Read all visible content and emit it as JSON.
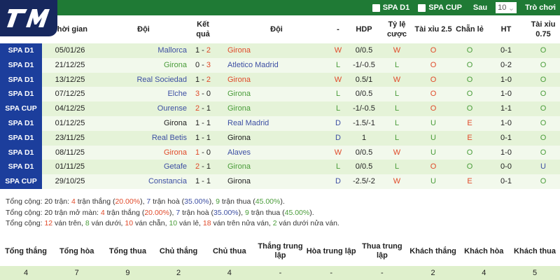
{
  "topbar": {
    "filters": [
      "SPA D1",
      "SPA CUP"
    ],
    "after_label": "Sau",
    "count": "10",
    "games_label": "Trò chơi"
  },
  "logo": "7M",
  "headers": [
    "Thời gian",
    "Đội",
    "Kết quả",
    "Đội",
    "-",
    "HDP",
    "Tỷ lệ cược",
    "Tài xỉu 2.5",
    "Chẵn lẻ",
    "HT",
    "Tài xỉu 0.75"
  ],
  "rows": [
    {
      "league": "SPA D1",
      "date": "05/01/26",
      "home": "Mallorca",
      "hs": "1",
      "as": "2",
      "away": "Girona",
      "res": "W",
      "hdp": "0/0.5",
      "odds": "W",
      "ou": "O",
      "oe": "O",
      "ht": "0-1",
      "ou075": "O"
    },
    {
      "league": "SPA D1",
      "date": "21/12/25",
      "home": "Girona",
      "hs": "0",
      "as": "3",
      "away": "Atletico Madrid",
      "res": "L",
      "hdp": "-1/-0.5",
      "odds": "L",
      "ou": "O",
      "oe": "O",
      "ht": "0-2",
      "ou075": "O"
    },
    {
      "league": "SPA D1",
      "date": "13/12/25",
      "home": "Real Sociedad",
      "hs": "1",
      "as": "2",
      "away": "Girona",
      "res": "W",
      "hdp": "0.5/1",
      "odds": "W",
      "ou": "O",
      "oe": "O",
      "ht": "1-0",
      "ou075": "O"
    },
    {
      "league": "SPA D1",
      "date": "07/12/25",
      "home": "Elche",
      "hs": "3",
      "as": "0",
      "away": "Girona",
      "res": "L",
      "hdp": "0/0.5",
      "odds": "L",
      "ou": "O",
      "oe": "O",
      "ht": "1-0",
      "ou075": "O"
    },
    {
      "league": "SPA CUP",
      "date": "04/12/25",
      "home": "Ourense",
      "hs": "2",
      "as": "1",
      "away": "Girona",
      "res": "L",
      "hdp": "-1/-0.5",
      "odds": "L",
      "ou": "O",
      "oe": "O",
      "ht": "1-1",
      "ou075": "O"
    },
    {
      "league": "SPA D1",
      "date": "01/12/25",
      "home": "Girona",
      "hs": "1",
      "as": "1",
      "away": "Real Madrid",
      "res": "D",
      "hdp": "-1.5/-1",
      "odds": "L",
      "ou": "U",
      "oe": "E",
      "ht": "1-0",
      "ou075": "O"
    },
    {
      "league": "SPA D1",
      "date": "23/11/25",
      "home": "Real Betis",
      "hs": "1",
      "as": "1",
      "away": "Girona",
      "res": "D",
      "hdp": "1",
      "odds": "L",
      "ou": "U",
      "oe": "E",
      "ht": "0-1",
      "ou075": "O"
    },
    {
      "league": "SPA D1",
      "date": "08/11/25",
      "home": "Girona",
      "hs": "1",
      "as": "0",
      "away": "Alaves",
      "res": "W",
      "hdp": "0/0.5",
      "odds": "W",
      "ou": "U",
      "oe": "O",
      "ht": "1-0",
      "ou075": "O"
    },
    {
      "league": "SPA D1",
      "date": "01/11/25",
      "home": "Getafe",
      "hs": "2",
      "as": "1",
      "away": "Girona",
      "res": "L",
      "hdp": "0/0.5",
      "odds": "L",
      "ou": "O",
      "oe": "O",
      "ht": "0-0",
      "ou075": "U"
    },
    {
      "league": "SPA CUP",
      "date": "29/10/25",
      "home": "Constancia",
      "hs": "1",
      "as": "1",
      "away": "Girona",
      "res": "D",
      "hdp": "-2.5/-2",
      "odds": "W",
      "ou": "U",
      "oe": "E",
      "ht": "0-1",
      "ou075": "O"
    }
  ],
  "summary": [
    [
      [
        "Tổng cộng: 20 trận: ",
        "k"
      ],
      [
        "4",
        "r"
      ],
      [
        " trận thắng (",
        "k"
      ],
      [
        "20.00%",
        "r"
      ],
      [
        "), ",
        "k"
      ],
      [
        "7",
        "b"
      ],
      [
        " trận hoà (",
        "k"
      ],
      [
        "35.00%",
        "b"
      ],
      [
        "), ",
        "k"
      ],
      [
        "9",
        "g"
      ],
      [
        " trận thua (",
        "k"
      ],
      [
        "45.00%",
        "g"
      ],
      [
        ").",
        "k"
      ]
    ],
    [
      [
        "Tổng cộng: 20 trận mở màn: ",
        "k"
      ],
      [
        "4",
        "r"
      ],
      [
        " trận thắng (",
        "k"
      ],
      [
        "20.00%",
        "r"
      ],
      [
        "), ",
        "k"
      ],
      [
        "7",
        "b"
      ],
      [
        " trận hoà (",
        "k"
      ],
      [
        "35.00%",
        "b"
      ],
      [
        "), ",
        "k"
      ],
      [
        "9",
        "g"
      ],
      [
        " trận thua (",
        "k"
      ],
      [
        "45.00%",
        "g"
      ],
      [
        ").",
        "k"
      ]
    ],
    [
      [
        "Tổng cộng: ",
        "k"
      ],
      [
        "12",
        "r"
      ],
      [
        " ván trên, ",
        "k"
      ],
      [
        "8",
        "g"
      ],
      [
        " ván dưới, ",
        "k"
      ],
      [
        "10",
        "r"
      ],
      [
        " ván chẵn, ",
        "k"
      ],
      [
        "10",
        "g"
      ],
      [
        " ván lẻ, ",
        "k"
      ],
      [
        "18",
        "r"
      ],
      [
        " ván trên nửa ván, ",
        "k"
      ],
      [
        "2",
        "g"
      ],
      [
        " ván dưới nửa ván.",
        "k"
      ]
    ]
  ],
  "stats": {
    "headers": [
      "Tổng thắng",
      "Tổng hòa",
      "Tổng thua",
      "Chủ thắng",
      "Chủ thua",
      "Thắng trung lập",
      "Hòa trung lập",
      "Thua trung lập",
      "Khách thắng",
      "Khách hòa",
      "Khách thua"
    ],
    "values": [
      "4",
      "7",
      "9",
      "2",
      "4",
      "-",
      "-",
      "-",
      "2",
      "4",
      "5"
    ]
  },
  "colors": {
    "header_bar": "#1f7a35",
    "league_cell": "#1c3e9c",
    "win": "#e04a2a",
    "draw": "#3d4fa3",
    "loss": "#4a9c3a"
  }
}
